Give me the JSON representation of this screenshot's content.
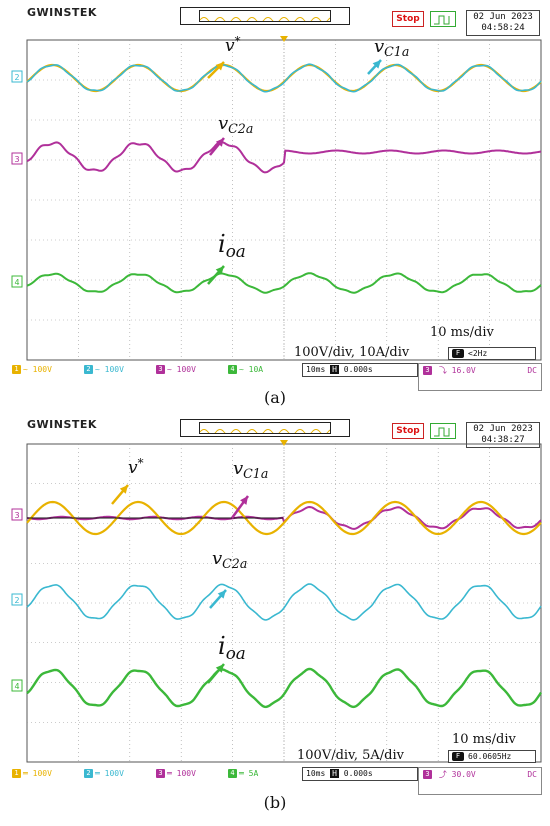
{
  "panels": [
    {
      "id": "a",
      "header": {
        "brand": "GWINSTEK",
        "status": "Stop",
        "date": "02 Jun 2023",
        "time": "04:58:24"
      },
      "annotations": {
        "v_star_base": "v",
        "v_star_sup": "*",
        "vc1a_base": "v",
        "vc1a_sub": "C1a",
        "vc2a_base": "v",
        "vc2a_sub": "C2a",
        "ioa_base": "i",
        "ioa_sub": "oa",
        "timebase": "10 ms/div",
        "scale": "100V/div, 10A/div",
        "freq": "<2Hz"
      },
      "footer": {
        "ch1": "100V",
        "ch2": "100V",
        "ch3": "100V",
        "ch4": "10A",
        "timebase": "10ms",
        "pos": "0.000s",
        "trig_ch": "3",
        "trig_level": "16.0V",
        "coupling": "DC"
      },
      "caption": "(a)"
    },
    {
      "id": "b",
      "header": {
        "brand": "GWINSTEK",
        "status": "Stop",
        "date": "02 Jun 2023",
        "time": "04:38:27"
      },
      "annotations": {
        "v_star_base": "v",
        "v_star_sup": "*",
        "vc1a_base": "v",
        "vc1a_sub": "C1a",
        "vc2a_base": "v",
        "vc2a_sub": "C2a",
        "ioa_base": "i",
        "ioa_sub": "oa",
        "timebase": "10 ms/div",
        "scale": "100V/div, 5A/div",
        "freq": "60.0605Hz"
      },
      "footer": {
        "ch1": "100V",
        "ch2": "100V",
        "ch3": "100V",
        "ch4": "5A",
        "timebase": "10ms",
        "pos": "0.000s",
        "trig_ch": "3",
        "trig_level": "30.0V",
        "coupling": "DC"
      },
      "caption": "(b)"
    }
  ],
  "colors": {
    "ch1": "#e8b200",
    "ch2": "#3ab8d0",
    "ch3": "#b0309a",
    "ch4": "#3cb83a",
    "grid": "#9a9a9a",
    "stop": "#d11111"
  },
  "chart_data": [
    {
      "type": "line",
      "x_unit": "ms",
      "x_range": [
        -50,
        50
      ],
      "series": [
        {
          "name": "v*",
          "channel": 1,
          "freq_hz": 60,
          "amplitude_v": 100,
          "offset_div": 0
        },
        {
          "name": "vC1a",
          "channel": 2,
          "freq_hz": 60,
          "amplitude_v": 100,
          "offset_div": 0
        },
        {
          "name": "vC2a",
          "channel": 3,
          "freq_hz": 60,
          "amplitude_v": 100,
          "note_after_0ms": "flat"
        },
        {
          "name": "ioa",
          "channel": 4,
          "freq_hz": 60,
          "amplitude_a": 10
        }
      ]
    },
    {
      "type": "line",
      "x_unit": "ms",
      "x_range": [
        -50,
        50
      ],
      "series": [
        {
          "name": "v*",
          "channel": 1,
          "freq_hz": 60,
          "amplitude_v": 100
        },
        {
          "name": "vC1a",
          "channel": 3,
          "freq_hz": 60,
          "amplitude_v": 100,
          "note_before_0ms": "flat"
        },
        {
          "name": "vC2a",
          "channel": 2,
          "freq_hz": 60,
          "amplitude_v": 100
        },
        {
          "name": "ioa",
          "channel": 4,
          "freq_hz": 60,
          "amplitude_a": 5
        }
      ]
    }
  ]
}
